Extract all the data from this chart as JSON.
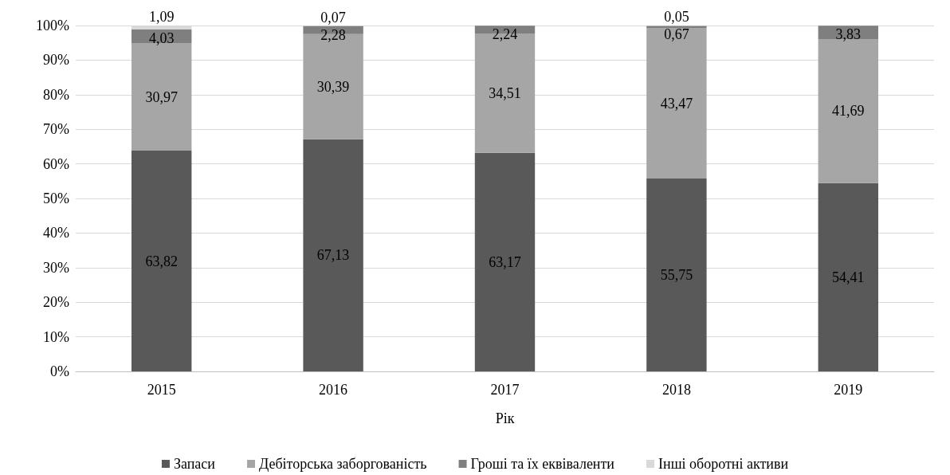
{
  "chart_data": {
    "type": "bar",
    "stacked": true,
    "xlabel": "Рік",
    "categories": [
      "2015",
      "2016",
      "2017",
      "2018",
      "2019"
    ],
    "series": [
      {
        "name": "Запаси",
        "color": "#595959",
        "values": [
          63.82,
          67.13,
          63.17,
          55.75,
          54.41
        ],
        "value_labels": [
          "63,82",
          "67,13",
          "63,17",
          "55,75",
          "54,41"
        ]
      },
      {
        "name": "Дебіторська заборгованість",
        "color": "#a6a6a6",
        "values": [
          30.97,
          30.39,
          34.51,
          43.47,
          41.69
        ],
        "value_labels": [
          "30,97",
          "30,39",
          "34,51",
          "43,47",
          "41,69"
        ]
      },
      {
        "name": "Гроші та їх еквіваленти",
        "color": "#7f7f7f",
        "values": [
          4.03,
          2.28,
          2.24,
          0.67,
          3.83
        ],
        "value_labels": [
          "4,03",
          "2,28",
          "2,24",
          "0,67",
          "3,83"
        ]
      },
      {
        "name": "Інші оборотні активи",
        "color": "#d9d9d9",
        "values": [
          1.09,
          0.07,
          null,
          0.05,
          null
        ],
        "value_labels": [
          "1,09",
          "0,07",
          null,
          "0,05",
          null
        ]
      }
    ],
    "ylim": [
      0,
      100
    ],
    "yticks": [
      {
        "value": 0,
        "label": "0%"
      },
      {
        "value": 10,
        "label": "10%"
      },
      {
        "value": 20,
        "label": "20%"
      },
      {
        "value": 30,
        "label": "30%"
      },
      {
        "value": 40,
        "label": "40%"
      },
      {
        "value": 50,
        "label": "50%"
      },
      {
        "value": 60,
        "label": "60%"
      },
      {
        "value": 70,
        "label": "70%"
      },
      {
        "value": 80,
        "label": "80%"
      },
      {
        "value": 90,
        "label": "90%"
      },
      {
        "value": 100,
        "label": "100%"
      }
    ],
    "grid": "y",
    "legend": "bottom"
  }
}
